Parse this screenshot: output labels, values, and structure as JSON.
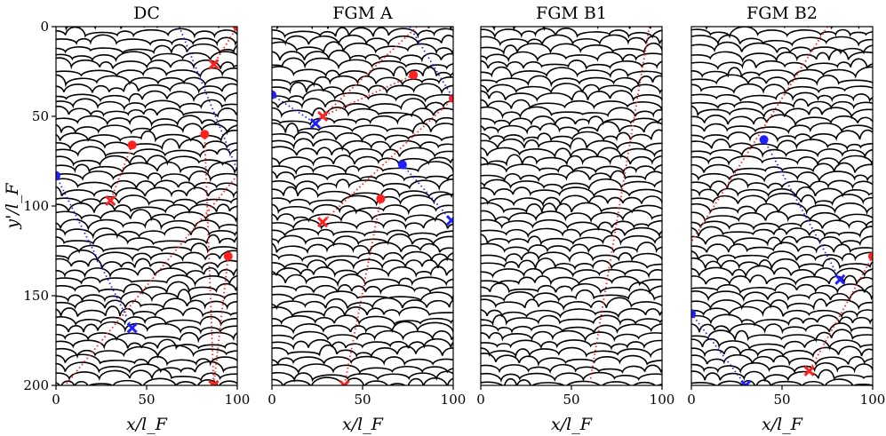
{
  "chart_data": [
    {
      "type": "scatter",
      "title": "DC",
      "xlabel": "x/l_F",
      "ylabel": "y'/l_F",
      "xlim": [
        0,
        100
      ],
      "ylim": [
        200,
        0
      ],
      "xticks": [
        "0",
        "50",
        "100"
      ],
      "yticks": [
        "0",
        "50",
        "100",
        "150",
        "200"
      ],
      "trajectories": [
        {
          "color": "#ff2020",
          "start": [
            42,
            66
          ],
          "end": [
            30,
            97
          ]
        },
        {
          "color": "#ff2020",
          "start": [
            82,
            60
          ],
          "end": [
            87,
            200
          ]
        },
        {
          "color": "#ff2020",
          "start": [
            95,
            128
          ],
          "end": [
            87,
            200
          ]
        },
        {
          "color": "#ff2020",
          "start": [
            100,
            0
          ],
          "end": [
            87,
            21
          ],
          "extend_from": [
            95,
            0
          ]
        },
        {
          "color": "#ff2020",
          "start": [
            100,
            83
          ],
          "end": [
            5,
            200
          ],
          "no_markers": true
        },
        {
          "color": "#2020ff",
          "start": [
            68,
            0
          ],
          "end": [
            100,
            80
          ],
          "no_markers": true
        },
        {
          "color": "#2020ff",
          "start": [
            0,
            83
          ],
          "end": [
            42,
            168
          ],
          "marker_end": "x"
        }
      ]
    },
    {
      "type": "scatter",
      "title": "FGM A",
      "xlabel": "x/l_F",
      "xlim": [
        0,
        100
      ],
      "ylim": [
        200,
        0
      ],
      "xticks": [
        "0",
        "50",
        "100"
      ],
      "trajectories": [
        {
          "color": "#ff2020",
          "start": [
            78,
            27
          ],
          "end": [
            28,
            50
          ]
        },
        {
          "color": "#ff2020",
          "start": [
            60,
            96
          ],
          "end": [
            40,
            200
          ],
          "no_start_x": true
        },
        {
          "color": "#ff2020",
          "start": [
            100,
            40
          ],
          "end": [
            28,
            109
          ]
        },
        {
          "color": "#ff2020",
          "start": [
            80,
            0
          ],
          "end": [
            28,
            50
          ],
          "no_markers": true
        },
        {
          "color": "#2020ff",
          "start": [
            0,
            38
          ],
          "end": [
            24,
            54
          ],
          "marker_end": "x"
        },
        {
          "color": "#2020ff",
          "start": [
            72,
            77
          ],
          "end": [
            99,
            108
          ]
        },
        {
          "color": "#2020ff",
          "start": [
            76,
            0
          ],
          "end": [
            100,
            40
          ],
          "no_markers": true
        }
      ]
    },
    {
      "type": "scatter",
      "title": "FGM B1",
      "xlabel": "x/l_F",
      "xlim": [
        0,
        100
      ],
      "ylim": [
        200,
        0
      ],
      "xticks": [
        "0",
        "50",
        "100"
      ],
      "trajectories": [
        {
          "color": "#ff2020",
          "start": [
            93,
            0
          ],
          "end": [
            60,
            200
          ],
          "no_markers": true
        }
      ]
    },
    {
      "type": "scatter",
      "title": "FGM B2",
      "xlabel": "x/l_F",
      "xlim": [
        0,
        100
      ],
      "ylim": [
        200,
        0
      ],
      "xticks": [
        "0",
        "50",
        "100"
      ],
      "trajectories": [
        {
          "color": "#ff2020",
          "start": [
            75,
            0
          ],
          "end": [
            0,
            120
          ],
          "no_markers": true
        },
        {
          "color": "#ff2020",
          "start": [
            100,
            128
          ],
          "end": [
            65,
            192
          ],
          "marker_end": "x"
        },
        {
          "color": "#2020ff",
          "start": [
            40,
            63
          ],
          "end": [
            82,
            141
          ]
        },
        {
          "color": "#2020ff",
          "start": [
            0,
            160
          ],
          "end": [
            30,
            200
          ]
        }
      ]
    }
  ]
}
